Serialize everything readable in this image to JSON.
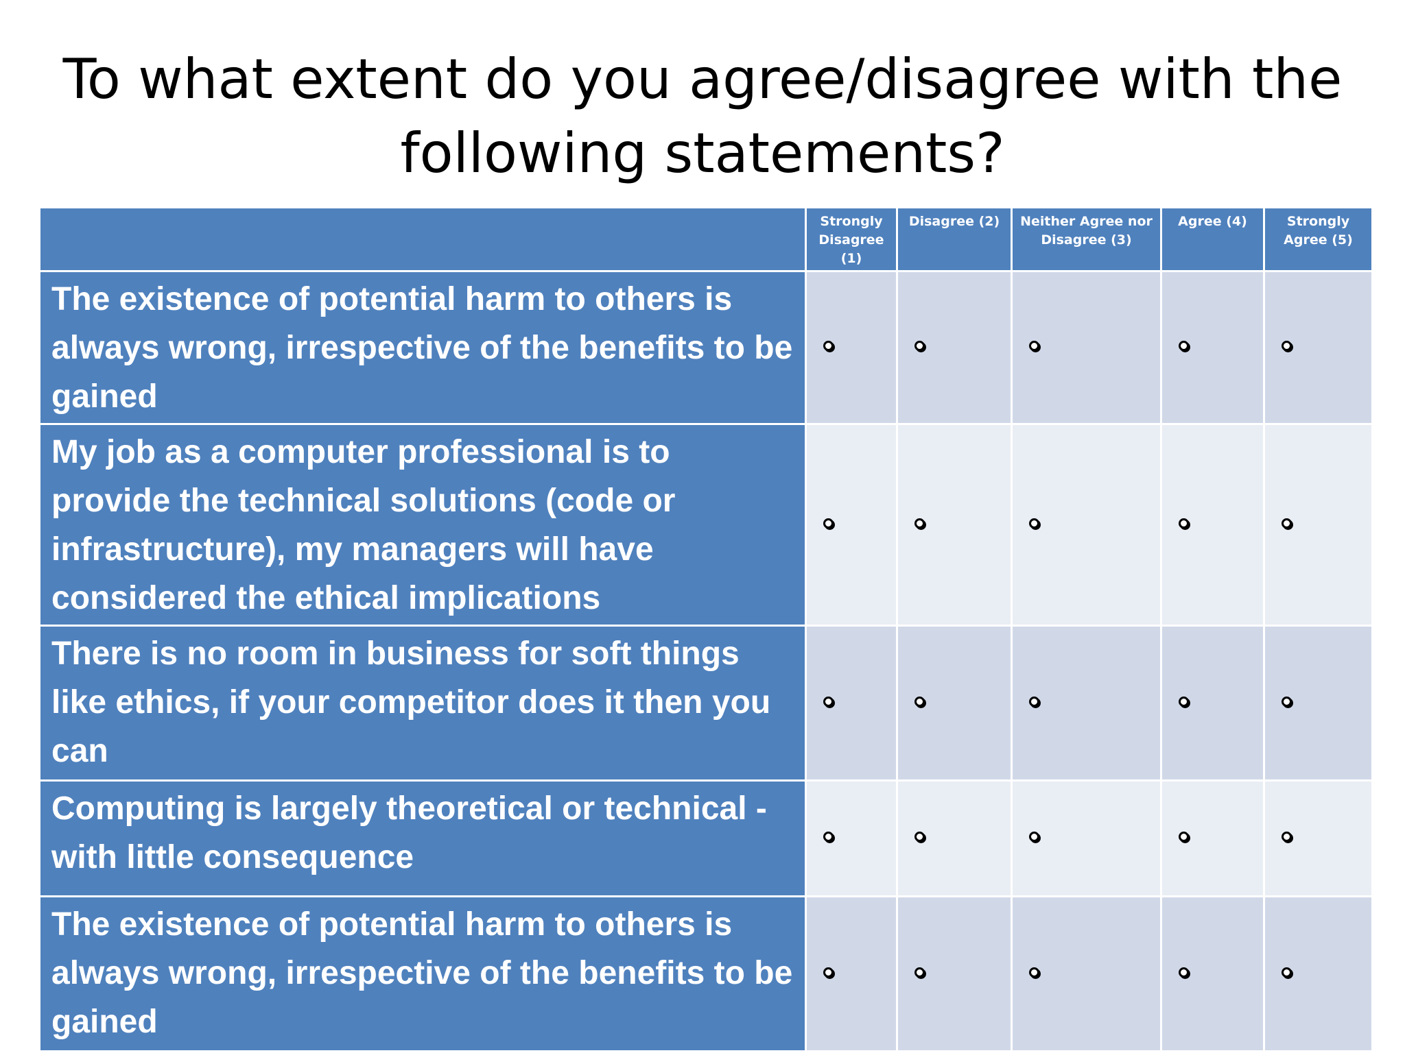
{
  "title": {
    "line1": "To what extent do you agree/disagree with the",
    "line2": "following statements?"
  },
  "columns": [
    {
      "label": "Strongly Disagree (1)"
    },
    {
      "label": "Disagree (2)"
    },
    {
      "label": "Neither Agree nor Disagree (3)"
    },
    {
      "label": "Agree (4)"
    },
    {
      "label": "Strongly Agree (5)"
    }
  ],
  "rows": [
    {
      "statement": "The existence of potential harm to others is always wrong, irrespective of the benefits to be gained"
    },
    {
      "statement": "My job as a computer professional is to provide the technical solutions (code or infrastructure), my managers will have considered the ethical implications"
    },
    {
      "statement": "There is no room in business for soft things like ethics, if your competitor does it then you can"
    },
    {
      "statement": "Computing is largely theoretical or technical -  with little consequence"
    },
    {
      "statement": "The existence of potential harm to others is always wrong, irrespective of the benefits to be gained"
    }
  ],
  "colors": {
    "header_fill": "#4f81bd",
    "row_fill_dark": "#d0d8e8",
    "row_fill_light": "#e9edf4",
    "text_on_blue": "#ffffff"
  },
  "icons": {
    "option": "radio-button-icon"
  }
}
